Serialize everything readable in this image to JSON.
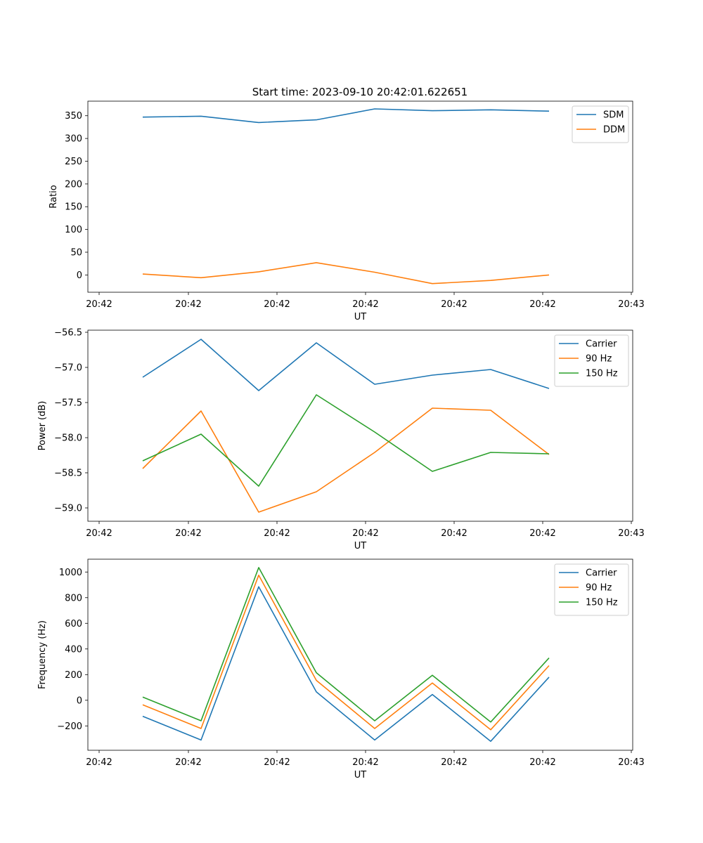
{
  "figure_title": "Start time: 2023-09-10 20:42:01.622651",
  "colors": {
    "blue": "#1f77b4",
    "orange": "#ff7f0e",
    "green": "#2ca02c"
  },
  "chart_data": [
    {
      "type": "line",
      "title": "Start time: 2023-09-10 20:42:01.622651",
      "xlabel": "UT",
      "ylabel": "Ratio",
      "x_ticks": [
        "20:42",
        "20:42",
        "20:42",
        "20:42",
        "20:42",
        "20:42",
        "20:43"
      ],
      "ylim": [
        -38,
        382
      ],
      "y_ticks": [
        0,
        50,
        100,
        150,
        200,
        250,
        300,
        350
      ],
      "legend": "top-right",
      "series": [
        {
          "name": "SDM",
          "color": "#1f77b4",
          "values": [
            347,
            349,
            335,
            341,
            365,
            361,
            363,
            360
          ]
        },
        {
          "name": "DDM",
          "color": "#ff7f0e",
          "values": [
            2,
            -6,
            7,
            27,
            6,
            -19,
            -12,
            0
          ]
        }
      ]
    },
    {
      "type": "line",
      "xlabel": "UT",
      "ylabel": "Power (dB)",
      "x_ticks": [
        "20:42",
        "20:42",
        "20:42",
        "20:42",
        "20:42",
        "20:42",
        "20:43"
      ],
      "ylim": [
        -59.19,
        -56.47
      ],
      "y_ticks": [
        -59.0,
        -58.5,
        -58.0,
        -57.5,
        -57.0,
        -56.5
      ],
      "y_tick_labels": [
        "−59.0",
        "−58.5",
        "−58.0",
        "−57.5",
        "−57.0",
        "−56.5"
      ],
      "legend": "top-right",
      "series": [
        {
          "name": "Carrier",
          "color": "#1f77b4",
          "values": [
            -57.14,
            -56.6,
            -57.33,
            -56.65,
            -57.24,
            -57.11,
            -57.03,
            -57.3
          ]
        },
        {
          "name": "90 Hz",
          "color": "#ff7f0e",
          "values": [
            -58.44,
            -57.62,
            -59.06,
            -58.77,
            -58.21,
            -57.58,
            -57.61,
            -58.24
          ]
        },
        {
          "name": "150 Hz",
          "color": "#2ca02c",
          "values": [
            -58.33,
            -57.95,
            -58.69,
            -57.39,
            -57.92,
            -58.48,
            -58.21,
            -58.23
          ]
        }
      ]
    },
    {
      "type": "line",
      "xlabel": "UT",
      "ylabel": "Frequency (Hz)",
      "x_ticks": [
        "20:42",
        "20:42",
        "20:42",
        "20:42",
        "20:42",
        "20:42",
        "20:43"
      ],
      "ylim": [
        -390,
        1100
      ],
      "y_ticks": [
        -200,
        0,
        200,
        400,
        600,
        800,
        1000
      ],
      "y_tick_labels": [
        "−200",
        "0",
        "200",
        "400",
        "600",
        "800",
        "1000"
      ],
      "legend": "top-right",
      "series": [
        {
          "name": "Carrier",
          "color": "#1f77b4",
          "values": [
            -125,
            -310,
            885,
            65,
            -310,
            45,
            -320,
            180
          ]
        },
        {
          "name": "90 Hz",
          "color": "#ff7f0e",
          "values": [
            -35,
            -220,
            975,
            155,
            -220,
            135,
            -230,
            270
          ]
        },
        {
          "name": "150 Hz",
          "color": "#2ca02c",
          "values": [
            25,
            -160,
            1035,
            215,
            -160,
            195,
            -170,
            330
          ]
        }
      ]
    }
  ]
}
